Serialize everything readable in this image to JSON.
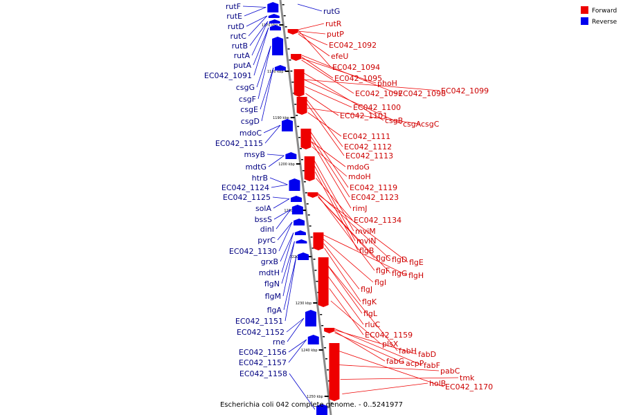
{
  "caption": "Escherichia coli 042 complete genome. - 0..5241977",
  "colors": {
    "forward": "#ee0000",
    "reverse": "#0000ee",
    "axis": "#8a8a8a",
    "leader_forward": "#ee0000",
    "leader_reverse": "#0000cc"
  },
  "legend": [
    {
      "label": "Forward",
      "strand": "forward"
    },
    {
      "label": "Reverse",
      "strand": "reverse"
    }
  ],
  "axis_ticks": [
    "1170 kbp",
    "1180 kbp",
    "1190 kbp",
    "1200 kbp",
    "1210 kbp",
    "1220 kbp",
    "1230 kbp",
    "1240 kbp",
    "1250 kbp"
  ],
  "reverse_labels": [
    "rutF",
    "rutE",
    "rutD",
    "rutC",
    "rutB",
    "rutA",
    "putA",
    "EC042_1091",
    "csgG",
    "csgF",
    "csgE",
    "csgD",
    "mdoC",
    "EC042_1115",
    "msyB",
    "mdtG",
    "htrB",
    "EC042_1124",
    "EC042_1125",
    "solA",
    "bssS",
    "dinI",
    "pyrC",
    "EC042_1130",
    "grxB",
    "mdtH",
    "flgN",
    "flgM",
    "flgA",
    "EC042_1151",
    "EC042_1152",
    "rne",
    "EC042_1156",
    "EC042_1157",
    "EC042_1158"
  ],
  "right_reverse_labels": [
    "rutG"
  ],
  "forward_labels": [
    "rutR",
    "putP",
    "EC042_1092",
    "efeU",
    "EC042_1094",
    "EC042_1095",
    "phoH",
    "EC042_1097",
    "EC042_1098",
    "EC042_1099",
    "EC042_1100",
    "EC042_1101",
    "csgB",
    "csgA",
    "csgC",
    "EC042_1111",
    "EC042_1112",
    "EC042_1113",
    "mdoG",
    "mdoH",
    "EC042_1119",
    "EC042_1123",
    "rimJ",
    "EC042_1134",
    "mviM",
    "mviN",
    "flgB",
    "flgC",
    "flgD",
    "flgE",
    "flgF",
    "flgG",
    "flgH",
    "flgI",
    "flgJ",
    "flgK",
    "flgL",
    "rluC",
    "EC042_1159",
    "plsX",
    "fabH",
    "fabD",
    "fabG",
    "acpP",
    "fabF",
    "pabC",
    "tmk",
    "holB",
    "EC042_1170"
  ]
}
